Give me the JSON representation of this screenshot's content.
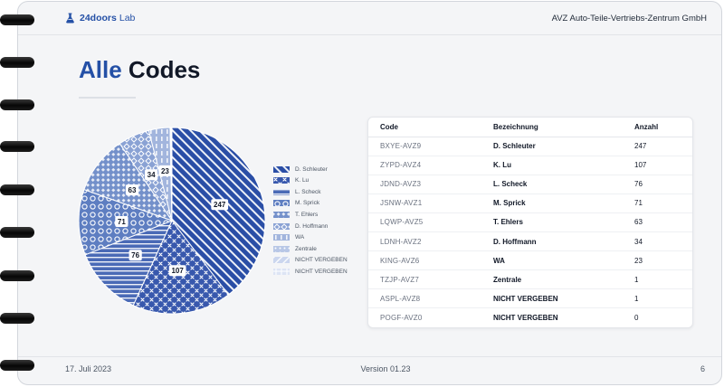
{
  "header": {
    "logo_icon": "flask-icon",
    "brand_name": "24doors",
    "brand_suffix": "Lab",
    "company": "AVZ Auto-Teile-Vertriebs-Zentrum GmbH"
  },
  "title": {
    "accent": "Alle",
    "rest": "Codes"
  },
  "theme": {
    "accent": "#2450a6",
    "text": "#111827",
    "muted": "#6b7280",
    "page_bg": "#f4f5f7"
  },
  "chart_data": {
    "type": "pie",
    "categories": [
      "D. Schleuter",
      "K. Lu",
      "L. Scheck",
      "M. Sprick",
      "T. Ehlers",
      "D. Hoffmann",
      "WA",
      "Zentrale",
      "NICHT VERGEBEN",
      "NICHT VERGEBEN"
    ],
    "values": [
      247,
      107,
      76,
      71,
      63,
      34,
      23,
      1,
      1,
      0
    ],
    "colors": [
      "#2a4ea6",
      "#3858ad",
      "#4a6ab6",
      "#5e7ec1",
      "#7390ca",
      "#8aa2d4",
      "#a2b5dd",
      "#b8c7e6",
      "#cbd6ee",
      "#dde4f4"
    ],
    "legend_position": "right",
    "data_labels": true
  },
  "table": {
    "columns": [
      "Code",
      "Bezeichnung",
      "Anzahl"
    ],
    "rows": [
      {
        "code": "BXYE-AVZ9",
        "name": "D. Schleuter",
        "count": "247"
      },
      {
        "code": "ZYPD-AVZ4",
        "name": "K. Lu",
        "count": "107"
      },
      {
        "code": "JDND-AVZ3",
        "name": "L. Scheck",
        "count": "76"
      },
      {
        "code": "JSNW-AVZ1",
        "name": "M. Sprick",
        "count": "71"
      },
      {
        "code": "LQWP-AVZ5",
        "name": "T. Ehlers",
        "count": "63"
      },
      {
        "code": "LDNH-AVZ2",
        "name": "D. Hoffmann",
        "count": "34"
      },
      {
        "code": "KING-AVZ6",
        "name": "WA",
        "count": "23"
      },
      {
        "code": "TZJP-AVZ7",
        "name": "Zentrale",
        "count": "1"
      },
      {
        "code": "ASPL-AVZ8",
        "name": "NICHT VERGEBEN",
        "count": "1"
      },
      {
        "code": "POGF-AVZ0",
        "name": "NICHT VERGEBEN",
        "count": "0"
      }
    ]
  },
  "footer": {
    "date": "17. Juli 2023",
    "version": "Version 01.23",
    "page": "6"
  }
}
